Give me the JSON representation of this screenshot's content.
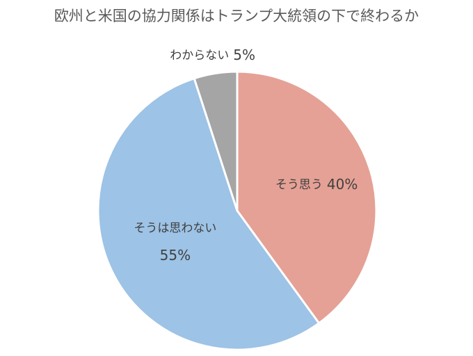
{
  "chart_data": {
    "type": "pie",
    "title": "欧州と米国の協力関係はトランプ大統領の下で終わるか",
    "categories": [
      "そう思う",
      "そうは思わない",
      "わからない"
    ],
    "values": [
      40,
      55,
      5
    ],
    "value_labels": [
      "40%",
      "55%",
      "5%"
    ],
    "colors": [
      "#e5a195",
      "#9dc3e6",
      "#a5a5a5"
    ]
  }
}
